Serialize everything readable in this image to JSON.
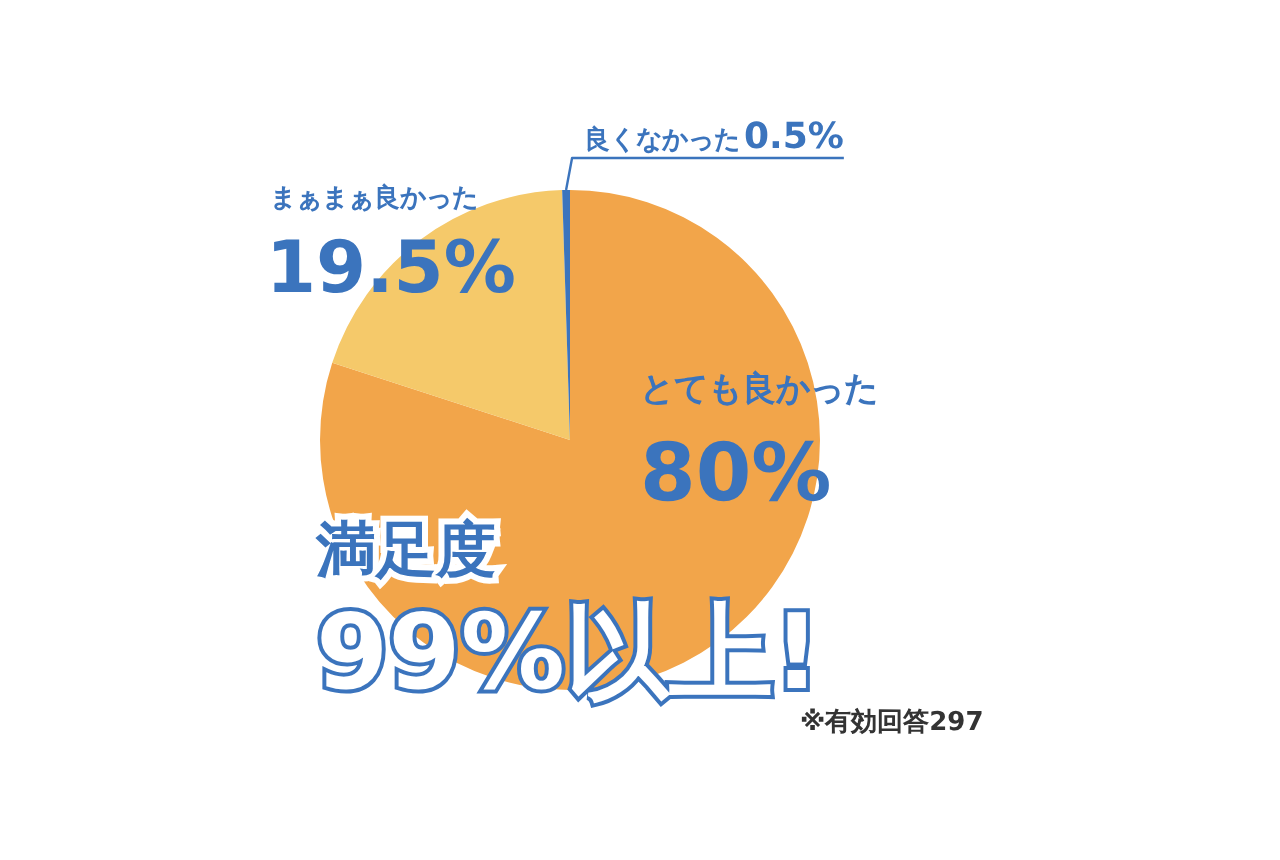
{
  "chart_data": {
    "type": "pie",
    "categories": [
      "とても良かった",
      "まぁまぁ良かった",
      "良くなかった"
    ],
    "values": [
      80,
      19.5,
      0.5
    ],
    "colors": [
      "#f2a54a",
      "#f5c96a",
      "#3b74bd"
    ],
    "value_labels": [
      "80%",
      "19.5%",
      "0.5%"
    ],
    "legend": false,
    "annotations": [
      "満足度",
      "99%以上!",
      "※有効回答297"
    ]
  }
}
